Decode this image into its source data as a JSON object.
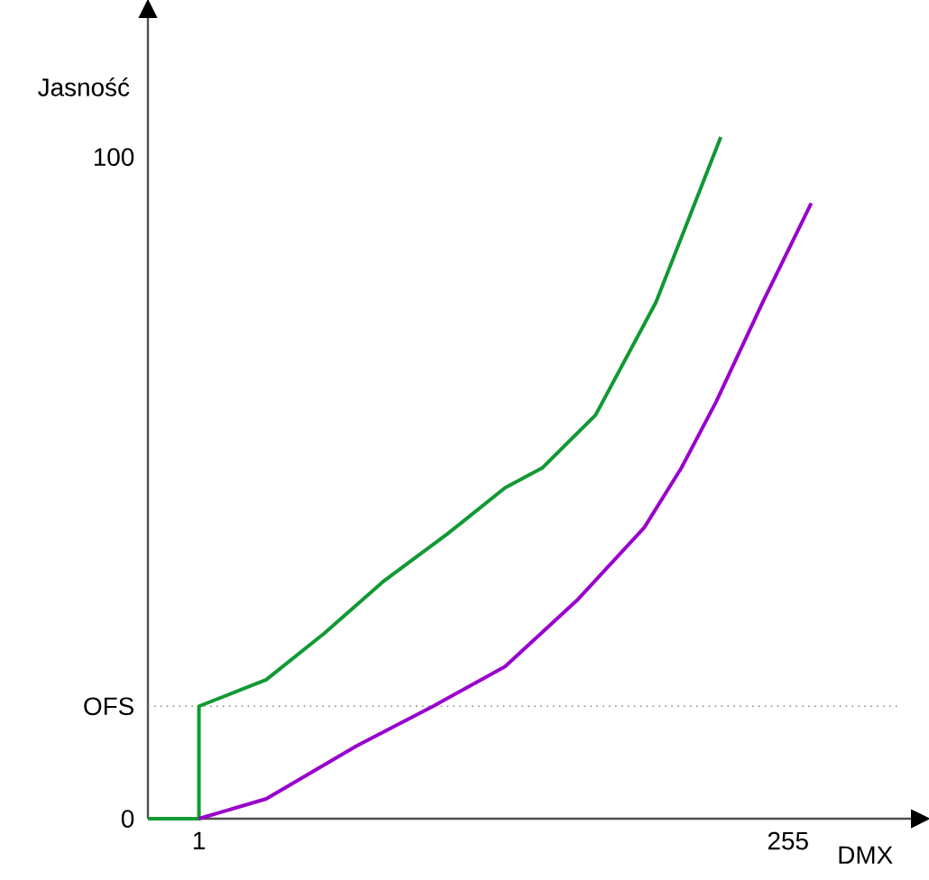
{
  "chart_data": {
    "type": "line",
    "xlabel": "DMX",
    "ylabel": "Jasność",
    "xlim": [
      -21,
      308
    ],
    "ylim": [
      0,
      121
    ],
    "xticks": [
      1,
      255
    ],
    "yticks": [
      {
        "value": 0,
        "label": "0"
      },
      {
        "value": 17,
        "label": "OFS"
      },
      100
    ],
    "ref_lines": [
      {
        "axis": "y",
        "value": 17,
        "color": "#888888",
        "line_style": "dotted"
      }
    ],
    "series": [
      {
        "color": "#119933",
        "x": [
          -21,
          1,
          1,
          30,
          55,
          81,
          108,
          133,
          149,
          172,
          198,
          226
        ],
        "values": [
          0,
          0,
          17,
          21,
          28,
          36,
          43,
          50,
          53,
          61,
          78,
          103
        ]
      },
      {
        "color": "#9900cc",
        "x": [
          1,
          30,
          69,
          102,
          133,
          164,
          193,
          209,
          224,
          244,
          265
        ],
        "values": [
          0,
          3,
          11,
          17,
          23,
          33,
          44,
          53,
          63,
          78,
          93
        ]
      }
    ]
  }
}
